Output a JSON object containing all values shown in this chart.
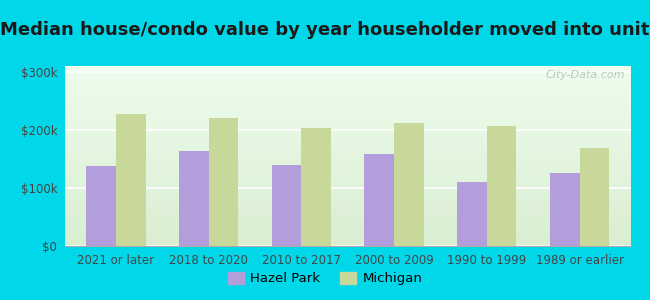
{
  "title": "Median house/condo value by year householder moved into unit",
  "categories": [
    "2021 or later",
    "2018 to 2020",
    "2010 to 2017",
    "2000 to 2009",
    "1990 to 1999",
    "1989 or earlier"
  ],
  "hazel_park": [
    138000,
    163000,
    140000,
    158000,
    110000,
    125000
  ],
  "michigan": [
    228000,
    220000,
    203000,
    212000,
    207000,
    168000
  ],
  "hazel_park_color": "#b39ddb",
  "michigan_color": "#c8d89a",
  "background_outer": "#00d8ea",
  "ylabel_ticks": [
    0,
    100000,
    200000,
    300000
  ],
  "ylabel_labels": [
    "$0",
    "$100k",
    "$200k",
    "$300k"
  ],
  "ylim": [
    0,
    310000
  ],
  "legend_hazel_park": "Hazel Park",
  "legend_michigan": "Michigan",
  "title_fontsize": 13,
  "tick_fontsize": 8.5,
  "legend_fontsize": 9.5,
  "watermark_text": "City-Data.com"
}
